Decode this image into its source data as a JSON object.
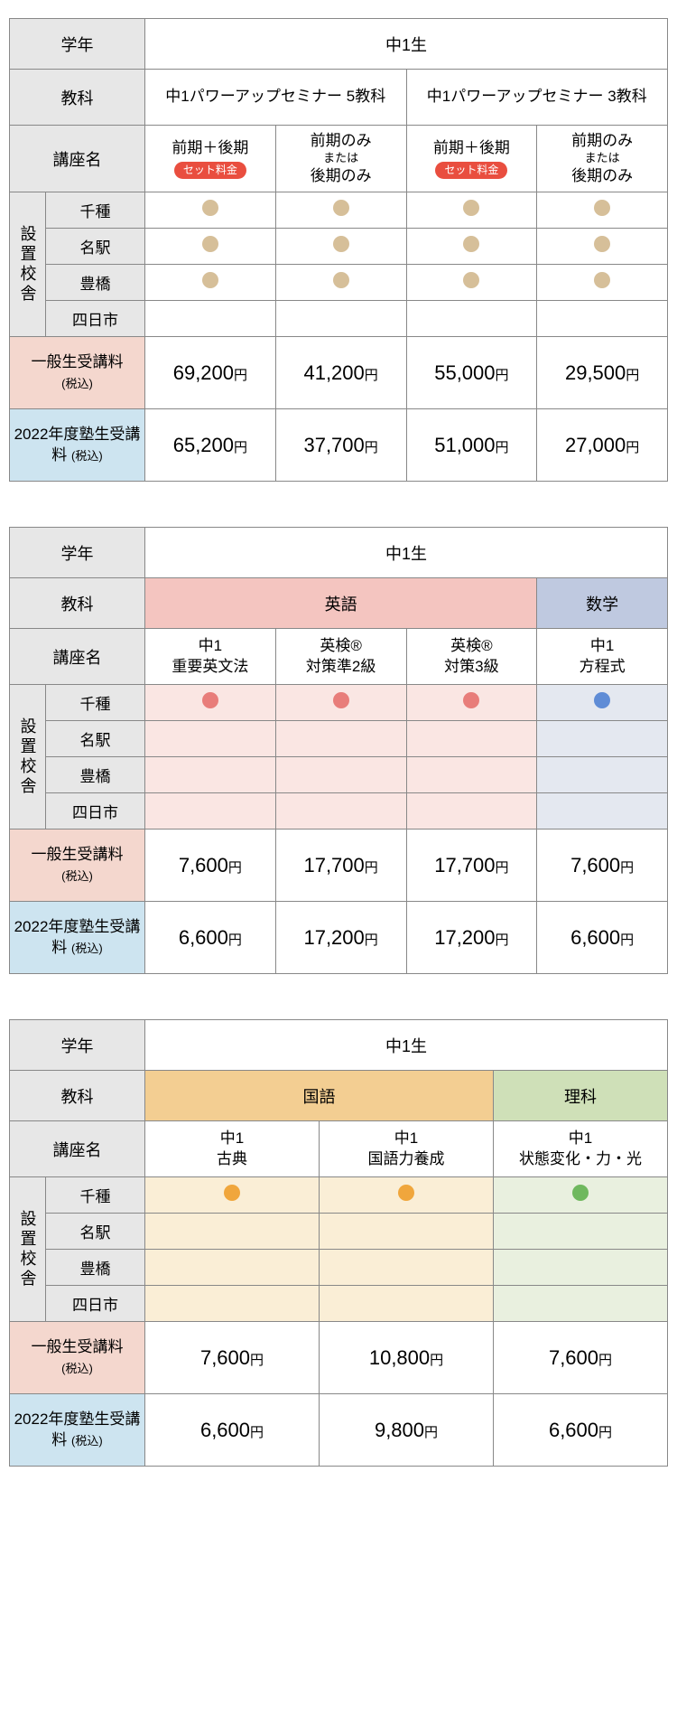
{
  "labels": {
    "grade": "学年",
    "subject": "教科",
    "course": "講座名",
    "campus": "設置校舎",
    "fee_general": "一般生受講料",
    "fee_general_sub": "(税込)",
    "fee_member": "2022年度塾生受講料",
    "fee_member_sub": "(税込)",
    "set_badge": "セット料金",
    "zenki_koki": "前期＋後期",
    "zenki_only": "前期のみ",
    "matawa": "または",
    "koki_only": "後期のみ"
  },
  "grade_value": "中1生",
  "campuses": [
    "千種",
    "名駅",
    "豊橋",
    "四日市"
  ],
  "colors": {
    "dot_tan": "#d6bf99",
    "dot_pink": "#e87d7a",
    "dot_blue": "#5f8cd6",
    "dot_orange": "#f0a63c",
    "dot_green": "#6fb85e"
  },
  "table1": {
    "courses": [
      {
        "title": "中1パワーアップセミナー 5教科"
      },
      {
        "title": "中1パワーアップセミナー 3教科"
      }
    ],
    "availability": [
      [
        true,
        true,
        true,
        true
      ],
      [
        true,
        true,
        true,
        true
      ],
      [
        true,
        true,
        true,
        true
      ],
      [
        false,
        false,
        false,
        false
      ]
    ],
    "prices_general": [
      "69,200",
      "41,200",
      "55,000",
      "29,500"
    ],
    "prices_member": [
      "65,200",
      "37,700",
      "51,000",
      "27,000"
    ]
  },
  "table2": {
    "subjects": [
      {
        "name": "英語",
        "span": 3,
        "hdr_class": "pink-hdr",
        "cell_class": "pink-cell",
        "dot": "dot_pink"
      },
      {
        "name": "数学",
        "span": 1,
        "hdr_class": "blue-hdr",
        "cell_class": "blue-cell",
        "dot": "dot_blue"
      }
    ],
    "courses": [
      {
        "l1": "中1",
        "l2": "重要英文法"
      },
      {
        "l1": "英検®",
        "l2": "対策準2級"
      },
      {
        "l1": "英検®",
        "l2": "対策3級"
      },
      {
        "l1": "中1",
        "l2": "方程式"
      }
    ],
    "availability": [
      [
        true,
        true,
        true,
        true
      ],
      [
        false,
        false,
        false,
        false
      ],
      [
        false,
        false,
        false,
        false
      ],
      [
        false,
        false,
        false,
        false
      ]
    ],
    "prices_general": [
      "7,600",
      "17,700",
      "17,700",
      "7,600"
    ],
    "prices_member": [
      "6,600",
      "17,200",
      "17,200",
      "6,600"
    ]
  },
  "table3": {
    "subjects": [
      {
        "name": "国語",
        "span": 2,
        "hdr_class": "orange-hdr",
        "cell_class": "orange-cell",
        "dot": "dot_orange"
      },
      {
        "name": "理科",
        "span": 1,
        "hdr_class": "green-hdr",
        "cell_class": "green-cell",
        "dot": "dot_green"
      }
    ],
    "courses": [
      {
        "l1": "中1",
        "l2": "古典"
      },
      {
        "l1": "中1",
        "l2": "国語力養成"
      },
      {
        "l1": "中1",
        "l2": "状態変化・力・光"
      }
    ],
    "availability": [
      [
        true,
        true,
        true
      ],
      [
        false,
        false,
        false
      ],
      [
        false,
        false,
        false
      ],
      [
        false,
        false,
        false
      ]
    ],
    "prices_general": [
      "7,600",
      "10,800",
      "7,600"
    ],
    "prices_member": [
      "6,600",
      "9,800",
      "6,600"
    ]
  }
}
